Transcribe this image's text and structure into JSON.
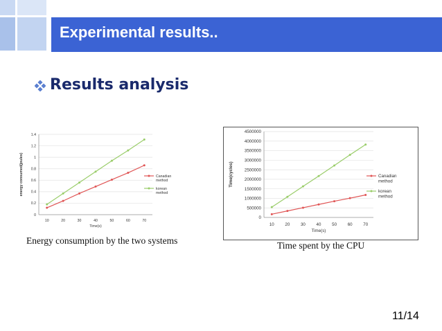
{
  "slide": {
    "title": "Experimental results..",
    "section_heading": "Results analysis",
    "page_number": "11/14",
    "accent_color": "#3b63d4",
    "bullet_icon": "diamond-bullet-icon"
  },
  "chart_data": [
    {
      "type": "line",
      "caption": "Energy consumption by the two systems",
      "xlabel": "Time(s)",
      "ylabel": "energy consumed(joules)",
      "x": [
        10,
        20,
        30,
        40,
        50,
        60,
        70
      ],
      "xticks": [
        "10",
        "20",
        "30",
        "40",
        "50",
        "60",
        "70"
      ],
      "ylim": [
        0,
        1.4
      ],
      "yticks": [
        "0",
        "0.2",
        "0.4",
        "0.6",
        "0.8",
        "1",
        "1.2",
        "1.4"
      ],
      "grid": true,
      "legend_position": "right",
      "series": [
        {
          "name": "Canadian method",
          "color": "#e05555",
          "values": [
            0.12,
            0.24,
            0.37,
            0.49,
            0.61,
            0.73,
            0.86
          ]
        },
        {
          "name": "korean method",
          "color": "#9acd6a",
          "values": [
            0.18,
            0.37,
            0.56,
            0.75,
            0.94,
            1.12,
            1.31
          ]
        }
      ]
    },
    {
      "type": "line",
      "caption": "Time spent by the CPU",
      "xlabel": "Time(s)",
      "ylabel": "Time(cycles)",
      "x": [
        10,
        20,
        30,
        40,
        50,
        60,
        70
      ],
      "xticks": [
        "10",
        "20",
        "30",
        "40",
        "50",
        "60",
        "70"
      ],
      "ylim": [
        0,
        4500000
      ],
      "yticks": [
        "0",
        "500000",
        "1000000",
        "1500000",
        "2000000",
        "2500000",
        "3000000",
        "3500000",
        "4000000",
        "4500000"
      ],
      "grid": true,
      "legend_position": "right",
      "series": [
        {
          "name": "Canadian method",
          "color": "#e05555",
          "values": [
            170000,
            340000,
            510000,
            680000,
            850000,
            1010000,
            1180000
          ]
        },
        {
          "name": "korean method",
          "color": "#9acd6a",
          "values": [
            540000,
            1080000,
            1630000,
            2170000,
            2720000,
            3280000,
            3820000
          ]
        }
      ]
    }
  ]
}
